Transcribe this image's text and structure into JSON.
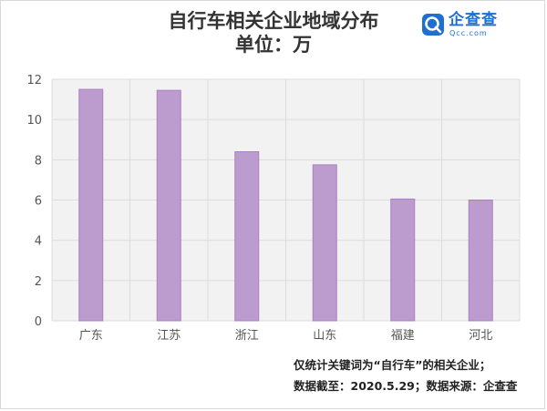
{
  "header": {
    "title": "自行车相关企业地域分布",
    "subtitle": "单位：万"
  },
  "logo": {
    "name": "企查查",
    "domain": "Qcc.com",
    "icon": "qcc-logo-icon",
    "color": "#1f6fd1"
  },
  "chart_data": {
    "type": "bar",
    "title": "自行车相关企业地域分布",
    "subtitle": "单位：万",
    "categories": [
      "广东",
      "江苏",
      "浙江",
      "山东",
      "福建",
      "河北"
    ],
    "values": [
      11.5,
      11.45,
      8.4,
      7.75,
      6.05,
      6.0
    ],
    "ylim": [
      0,
      12
    ],
    "yticks": [
      "0",
      "2",
      "4",
      "6",
      "8",
      "10",
      "12"
    ],
    "grid": true,
    "legend": "none",
    "bar_color": "#bc9ccf",
    "bar_edge_color": "#a980bf",
    "plot_background": "#f2f2f2",
    "grid_color": "#dcdcdc",
    "text_color": "#555555"
  },
  "footer": {
    "note1": "仅统计关键词为“自行车”的相关企业；",
    "note2": "数据截至：2020.5.29；数据来源：企查查"
  }
}
